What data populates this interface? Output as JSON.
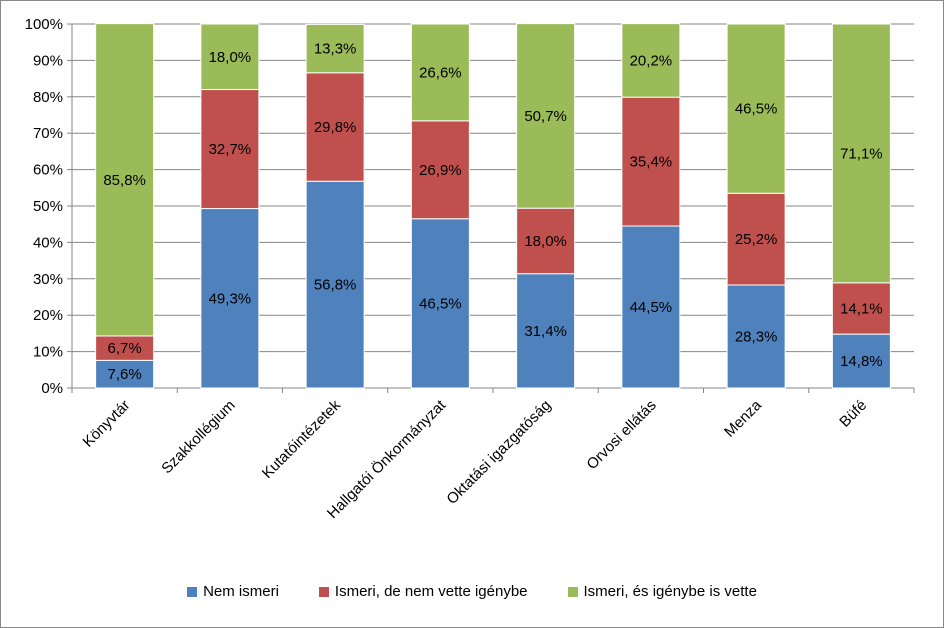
{
  "chart_data": {
    "type": "bar",
    "stacked": true,
    "percent_stacked": true,
    "categories": [
      "Könyvtár",
      "Szakkollégium",
      "Kutatóintézetek",
      "Hallgatói Önkormányzat",
      "Oktatási igazgatóság",
      "Orvosi ellátás",
      "Menza",
      "Büfé"
    ],
    "series": [
      {
        "name": "Nem ismeri",
        "color": "#4F81BD",
        "values": [
          7.6,
          49.3,
          56.8,
          46.5,
          31.4,
          44.5,
          28.3,
          14.8
        ],
        "labels": [
          "7,6%",
          "49,3%",
          "56,8%",
          "46,5%",
          "31,4%",
          "44,5%",
          "28,3%",
          "14,8%"
        ]
      },
      {
        "name": "Ismeri, de nem vette igénybe",
        "color": "#C0504D",
        "values": [
          6.7,
          32.7,
          29.8,
          26.9,
          18.0,
          35.4,
          25.2,
          14.1
        ],
        "labels": [
          "6,7%",
          "32,7%",
          "29,8%",
          "26,9%",
          "18,0%",
          "35,4%",
          "25,2%",
          "14,1%"
        ]
      },
      {
        "name": "Ismeri, és igénybe is vette",
        "color": "#9BBB59",
        "values": [
          85.8,
          18.0,
          13.3,
          26.6,
          50.7,
          20.2,
          46.5,
          71.1
        ],
        "labels": [
          "85,8%",
          "18,0%",
          "13,3%",
          "26,6%",
          "50,7%",
          "20,2%",
          "46,5%",
          "71,1%"
        ]
      }
    ],
    "yticks": [
      "0%",
      "10%",
      "20%",
      "30%",
      "40%",
      "50%",
      "60%",
      "70%",
      "80%",
      "90%",
      "100%"
    ],
    "ylim": [
      0,
      100
    ],
    "grid": true,
    "legend": "bottom"
  }
}
